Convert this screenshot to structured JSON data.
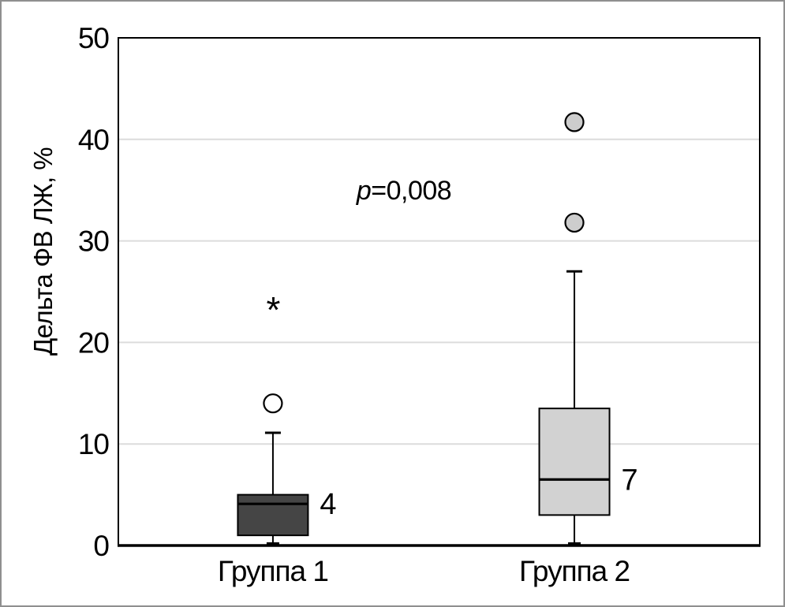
{
  "chart_data": {
    "type": "boxplot",
    "title": "",
    "ylabel": "Дельта ФВ ЛЖ, %",
    "xlabel": "",
    "ylim": [
      0,
      50
    ],
    "yticks": [
      0,
      10,
      20,
      30,
      40,
      50
    ],
    "grid": "horizontal",
    "legend": "none",
    "annotation": {
      "var": "p",
      "rest": "=0,008",
      "text": "p=0,008"
    },
    "categories": [
      "Группа 1",
      "Группа 2"
    ],
    "series": [
      {
        "name": "Группа 1",
        "whisker_low": 0.2,
        "q1": 1.0,
        "median": 4.1,
        "q3": 5.0,
        "whisker_high": 11.1,
        "outliers": [
          14
        ],
        "extremes": [
          24
        ],
        "median_label": "4",
        "box_fill": "#454545",
        "outlier_fill": "#ffffff"
      },
      {
        "name": "Группа 2",
        "whisker_low": 0.2,
        "q1": 3.0,
        "median": 6.5,
        "q3": 13.5,
        "whisker_high": 27.0,
        "outliers": [
          31.8,
          41.7
        ],
        "extremes": [],
        "median_label": "7",
        "box_fill": "#d2d2d2",
        "outlier_fill": "#cdcdcd"
      }
    ],
    "colors": {
      "gridline": "#dcdcdc",
      "frame": "#000000",
      "text": "#000000",
      "canvas_border": "#8f8f8f",
      "background": "#ffffff"
    }
  }
}
